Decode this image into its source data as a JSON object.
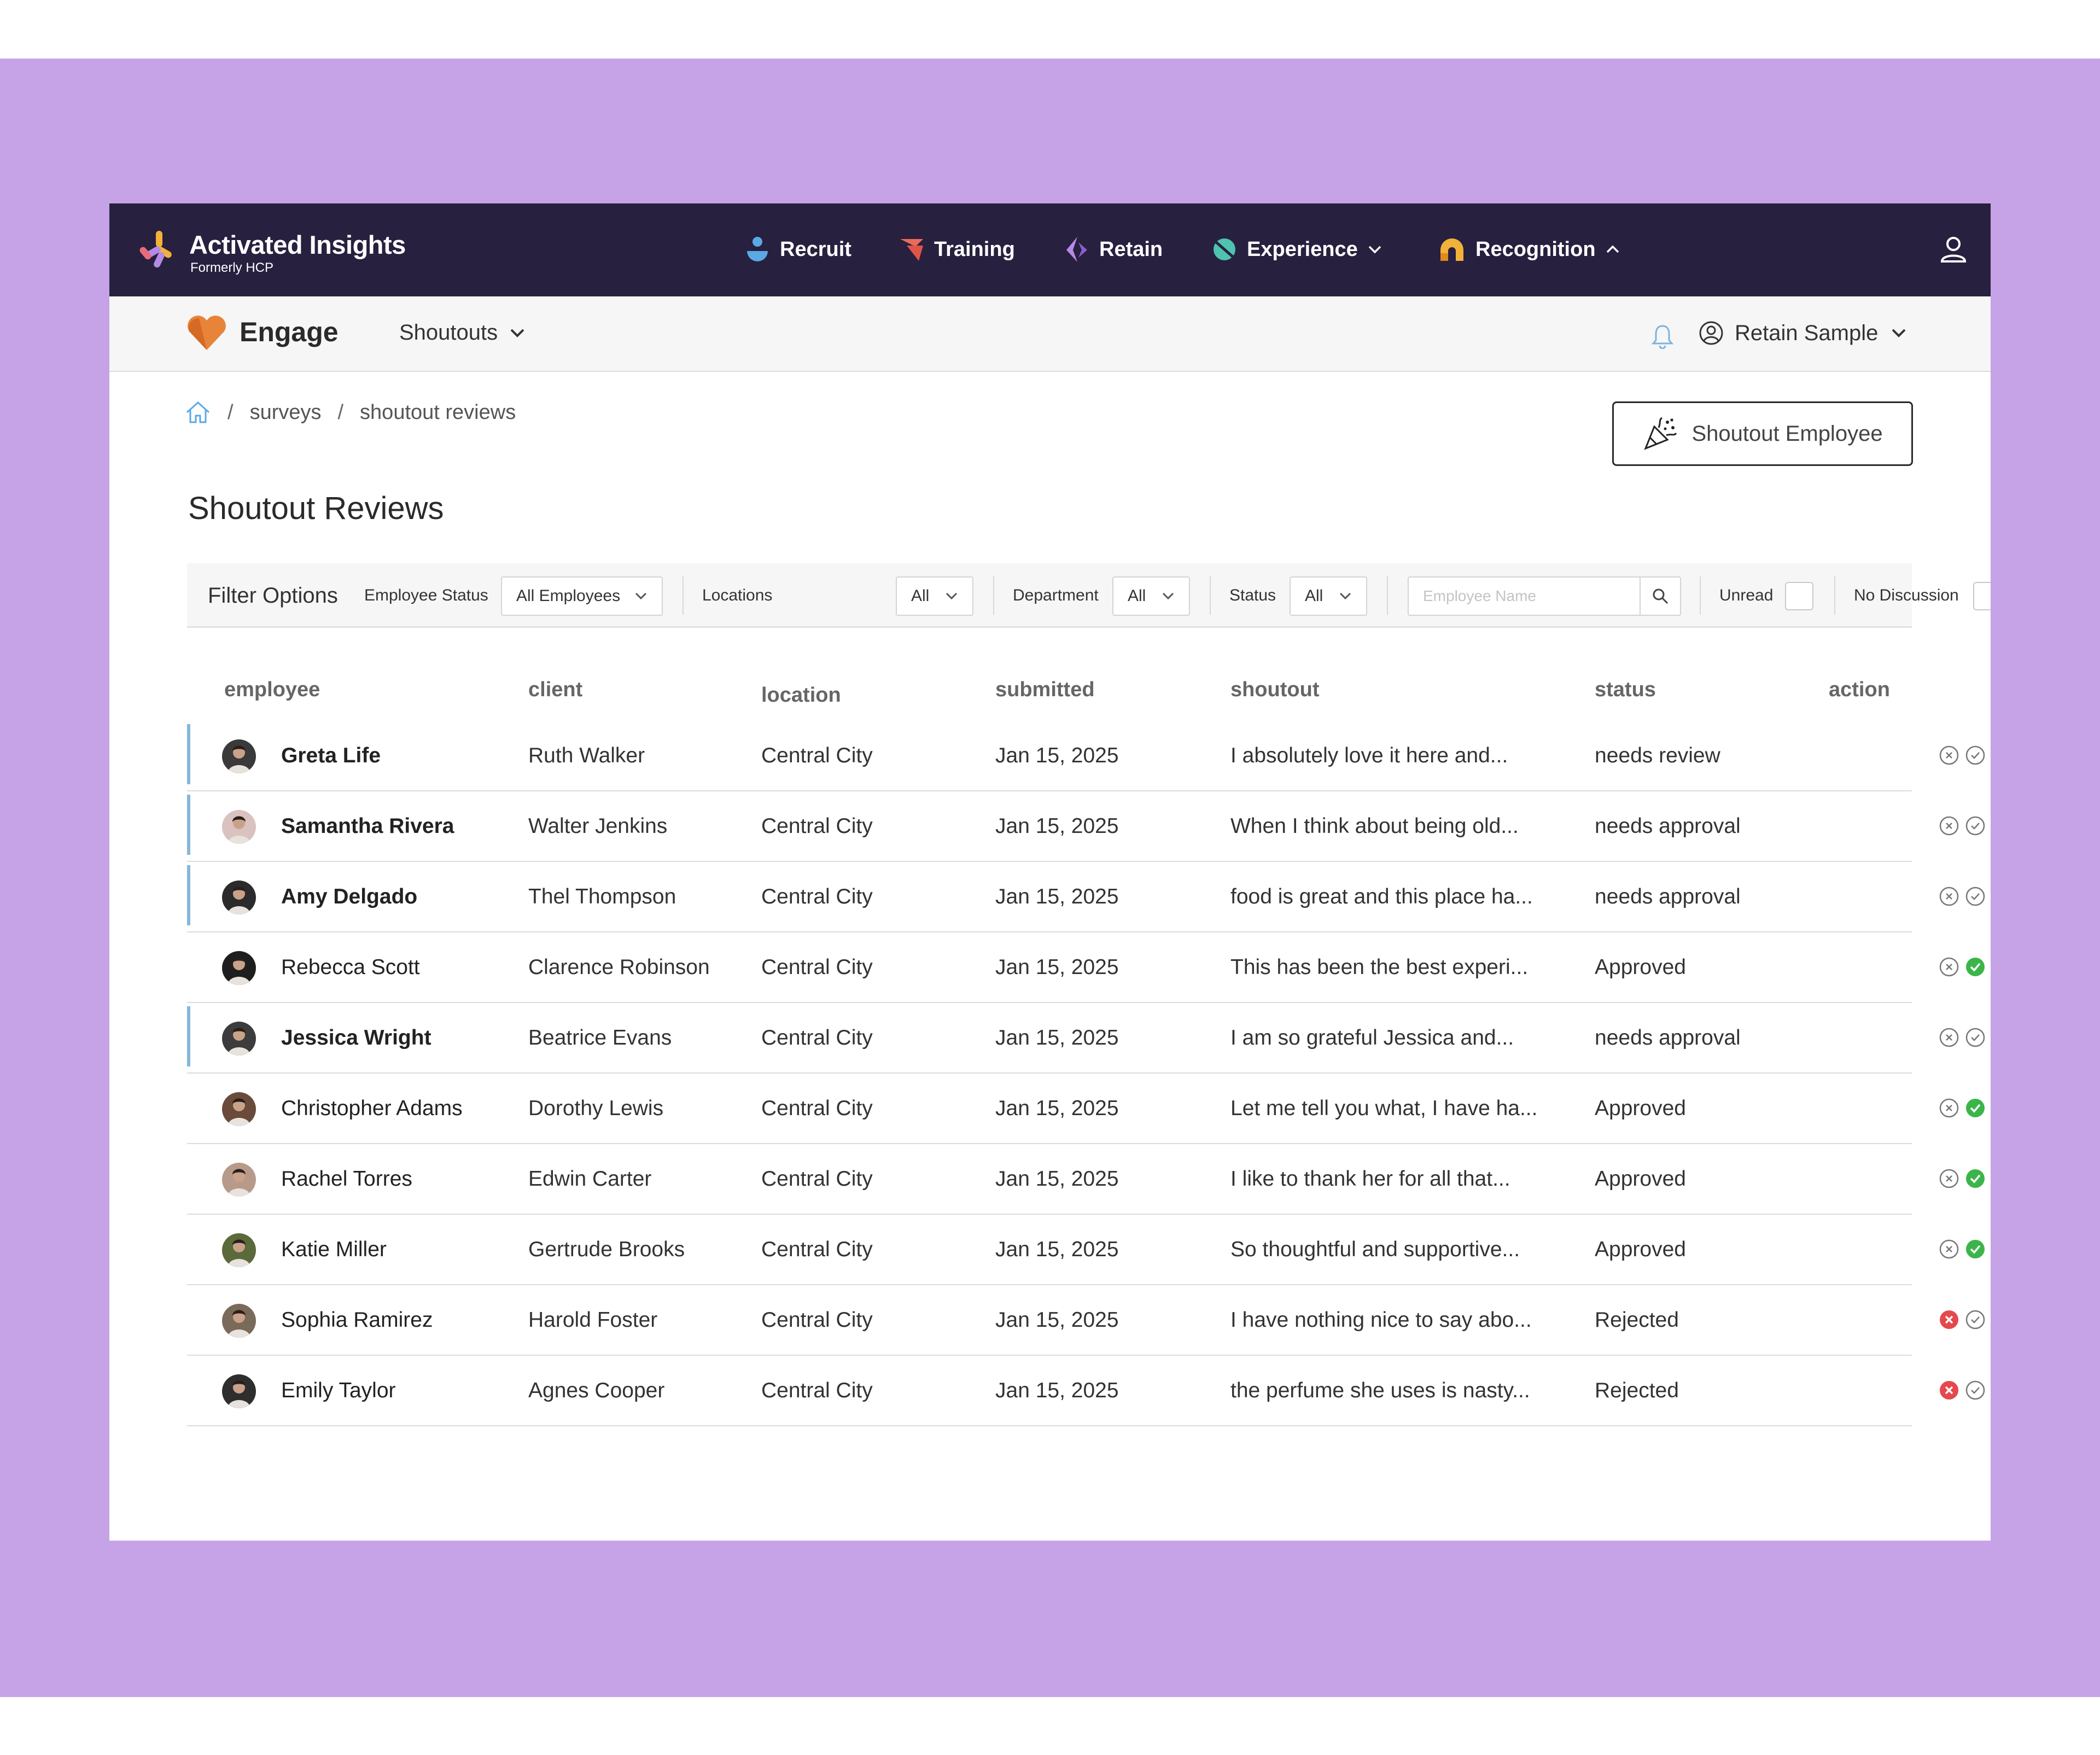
{
  "topnav": {
    "brand": {
      "name": "Activated Insights",
      "subtitle": "Formerly HCP"
    },
    "items": [
      {
        "label": "Recruit",
        "icon": "recruit-icon"
      },
      {
        "label": "Training",
        "icon": "training-icon"
      },
      {
        "label": "Retain",
        "icon": "retain-icon"
      },
      {
        "label": "Experience",
        "icon": "experience-icon"
      },
      {
        "label": "Recognition",
        "icon": "recognition-icon"
      }
    ],
    "user_icon": "user-icon"
  },
  "subnav": {
    "app_title": "Engage",
    "menu_label": "Shoutouts",
    "account_name": "Retain Sample"
  },
  "breadcrumb": [
    "surveys",
    "shoutout reviews"
  ],
  "shoutout_button": "Shoutout Employee",
  "page_title": "Shoutout Reviews",
  "filters": {
    "title": "Filter Options",
    "employee_status": {
      "label": "Employee Status",
      "value": "All Employees"
    },
    "locations": {
      "label": "Locations",
      "value": "All"
    },
    "department": {
      "label": "Department",
      "value": "All"
    },
    "status": {
      "label": "Status",
      "value": "All"
    },
    "search_placeholder": "Employee Name",
    "unread_label": "Unread",
    "no_discussion_label": "No Discussion"
  },
  "table": {
    "columns": [
      "employee",
      "client",
      "location",
      "submitted",
      "shoutout",
      "status",
      "action"
    ],
    "rows": [
      {
        "employee": "Greta Life",
        "client": "Ruth Walker",
        "location": "Central City",
        "submitted": "Jan 15, 2025",
        "shoutout": "I absolutely love it here and...",
        "status": "needs review",
        "unread": true,
        "decision": "pending"
      },
      {
        "employee": "Samantha Rivera",
        "client": "Walter Jenkins",
        "location": "Central City",
        "submitted": "Jan 15, 2025",
        "shoutout": "When I think about being old...",
        "status": "needs approval",
        "unread": true,
        "decision": "pending"
      },
      {
        "employee": "Amy Delgado",
        "client": "Thel Thompson",
        "location": "Central City",
        "submitted": "Jan 15, 2025",
        "shoutout": "food is great and this place ha...",
        "status": "needs approval",
        "unread": true,
        "decision": "pending"
      },
      {
        "employee": "Rebecca Scott",
        "client": "Clarence Robinson",
        "location": "Central City",
        "submitted": "Jan 15, 2025",
        "shoutout": "This has been the best experi...",
        "status": "Approved",
        "unread": false,
        "decision": "approved"
      },
      {
        "employee": "Jessica Wright",
        "client": "Beatrice Evans",
        "location": "Central City",
        "submitted": "Jan 15, 2025",
        "shoutout": "I am so grateful Jessica and...",
        "status": "needs approval",
        "unread": true,
        "decision": "pending"
      },
      {
        "employee": "Christopher Adams",
        "client": "Dorothy Lewis",
        "location": "Central City",
        "submitted": "Jan 15, 2025",
        "shoutout": "Let me tell you what, I have ha...",
        "status": "Approved",
        "unread": false,
        "decision": "approved"
      },
      {
        "employee": "Rachel Torres",
        "client": "Edwin Carter",
        "location": "Central City",
        "submitted": "Jan 15, 2025",
        "shoutout": "I like to thank her for all that...",
        "status": "Approved",
        "unread": false,
        "decision": "approved"
      },
      {
        "employee": "Katie Miller",
        "client": "Gertrude Brooks",
        "location": "Central City",
        "submitted": "Jan 15, 2025",
        "shoutout": "So thoughtful and supportive...",
        "status": "Approved",
        "unread": false,
        "decision": "approved"
      },
      {
        "employee": "Sophia Ramirez",
        "client": "Harold Foster",
        "location": "Central City",
        "submitted": "Jan 15, 2025",
        "shoutout": "I have nothing nice to say abo...",
        "status": "Rejected",
        "unread": false,
        "decision": "rejected"
      },
      {
        "employee": "Emily Taylor",
        "client": "Agnes Cooper",
        "location": "Central City",
        "submitted": "Jan 15, 2025",
        "shoutout": "the perfume she uses is nasty...",
        "status": "Rejected",
        "unread": false,
        "decision": "rejected"
      }
    ]
  },
  "colors": {
    "frame": "#c6a3e6",
    "nav_bg": "#27203f",
    "approve_active": "#3bb54a",
    "reject_active": "#e5484d",
    "unread_marker": "#86b7d9"
  }
}
